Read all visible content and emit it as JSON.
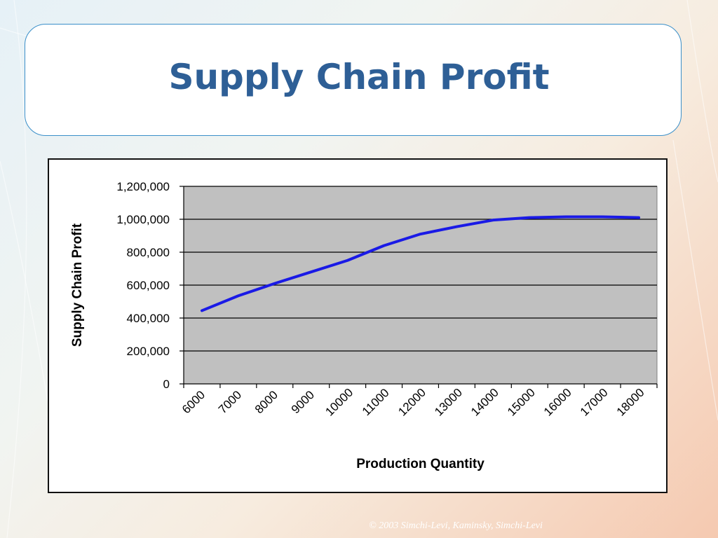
{
  "slide": {
    "title": "Supply Chain Profit",
    "footer": "© 2003 Simchi-Levi, Kaminsky, Simchi-Levi"
  },
  "colors": {
    "title": "#2e5f96",
    "plot_area": "#c0c0c0",
    "series_line": "#1a1ae6",
    "title_box_border": "#3a8fc9"
  },
  "chart_data": {
    "type": "line",
    "title": "",
    "xlabel": "Production Quantity",
    "ylabel": "Supply Chain Profit",
    "x_tick_labels": [
      "6000",
      "7000",
      "8000",
      "9000",
      "10000",
      "11000",
      "12000",
      "13000",
      "14000",
      "15000",
      "16000",
      "17000",
      "18000"
    ],
    "y_tick_labels": [
      "0",
      "200,000",
      "400,000",
      "600,000",
      "800,000",
      "1,000,000",
      "1,200,000"
    ],
    "ylim": [
      0,
      1200000
    ],
    "yticks": [
      0,
      200000,
      400000,
      600000,
      800000,
      1000000,
      1200000
    ],
    "grid": "horizontal",
    "legend": "none",
    "series": [
      {
        "x": [
          6000,
          7000,
          8000,
          9000,
          10000,
          11000,
          12000,
          13000,
          14000,
          15000,
          16000,
          17000,
          18000
        ],
        "values": [
          445000,
          535000,
          610000,
          680000,
          750000,
          840000,
          910000,
          955000,
          995000,
          1010000,
          1015000,
          1015000,
          1010000
        ]
      }
    ]
  }
}
